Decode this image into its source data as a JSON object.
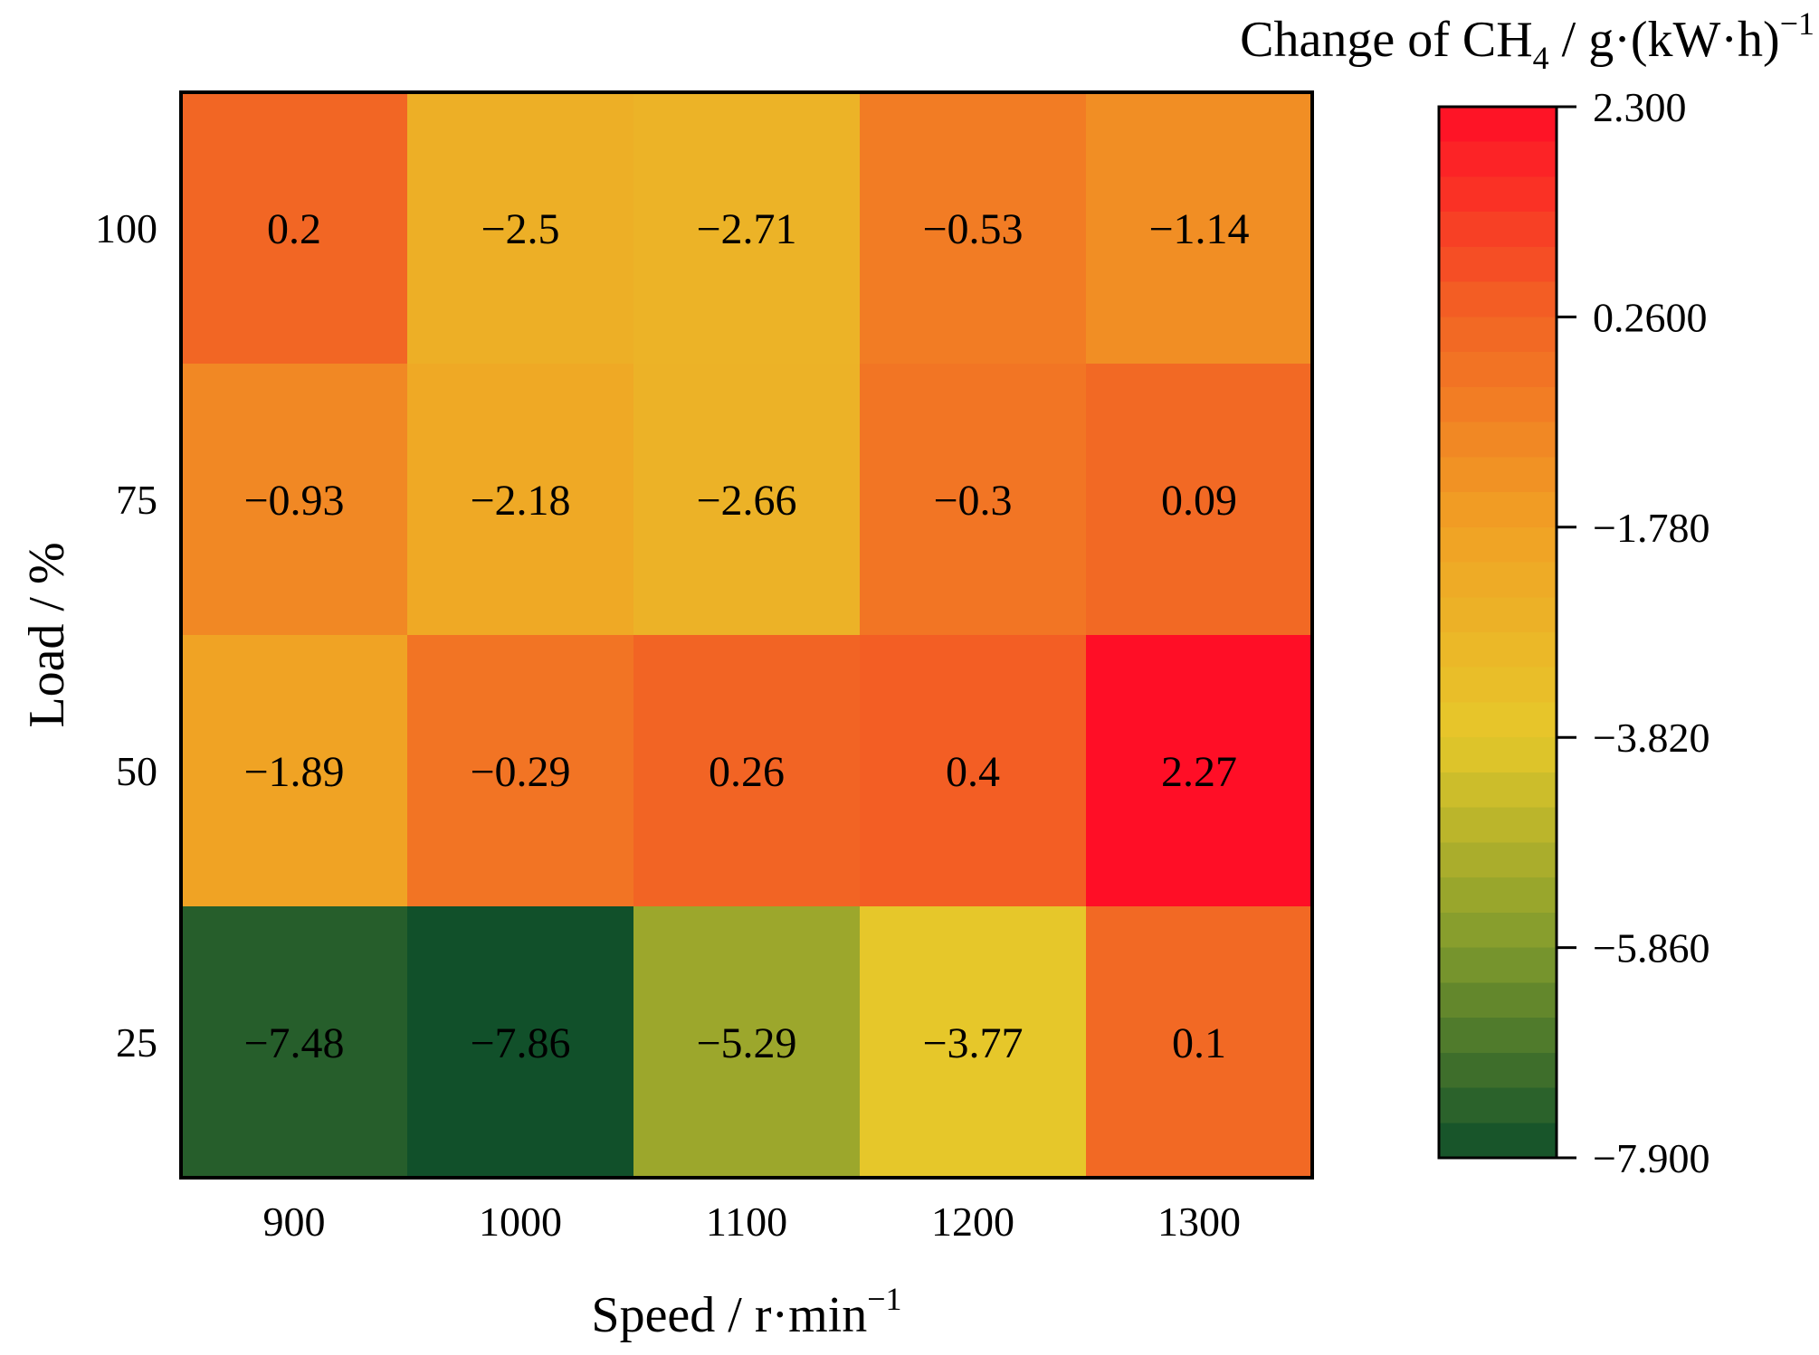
{
  "chart_data": {
    "type": "heatmap",
    "x": [
      "900",
      "1000",
      "1100",
      "1200",
      "1300"
    ],
    "y": [
      "100",
      "75",
      "50",
      "25"
    ],
    "values": [
      [
        0.2,
        -2.5,
        -2.71,
        -0.53,
        -1.14
      ],
      [
        -0.93,
        -2.18,
        -2.66,
        -0.3,
        0.09
      ],
      [
        -1.89,
        -0.29,
        0.26,
        0.4,
        2.27
      ],
      [
        -7.48,
        -7.86,
        -5.29,
        -3.77,
        0.1
      ]
    ],
    "cell_labels": [
      [
        "0.2",
        "−2.5",
        "−2.71",
        "−0.53",
        "−1.14"
      ],
      [
        "−0.93",
        "−2.18",
        "−2.66",
        "−0.3",
        "0.09"
      ],
      [
        "−1.89",
        "−0.29",
        "0.26",
        "0.4",
        "2.27"
      ],
      [
        "−7.48",
        "−7.86",
        "−5.29",
        "−3.77",
        "0.1"
      ]
    ],
    "xlabel": {
      "main": "Speed / r·min",
      "sup": "−1"
    },
    "ylabel": "Load / %",
    "colorbar": {
      "title": {
        "main": "Change of CH",
        "sub": "4",
        "mid": " / g·(kW·h)",
        "sup": "−1"
      },
      "range": [
        -7.9,
        2.3
      ],
      "ticks": [
        2.3,
        0.26,
        -1.78,
        -3.82,
        -5.86,
        -7.9
      ],
      "tick_labels": [
        "2.300",
        "0.2600",
        "−1.780",
        "−3.820",
        "−5.860",
        "−7.900"
      ],
      "colors": [
        "#0f4f2a",
        "#7f9a2d",
        "#e6c82a",
        "#f1a124",
        "#f26424",
        "#ff0d26"
      ]
    }
  }
}
